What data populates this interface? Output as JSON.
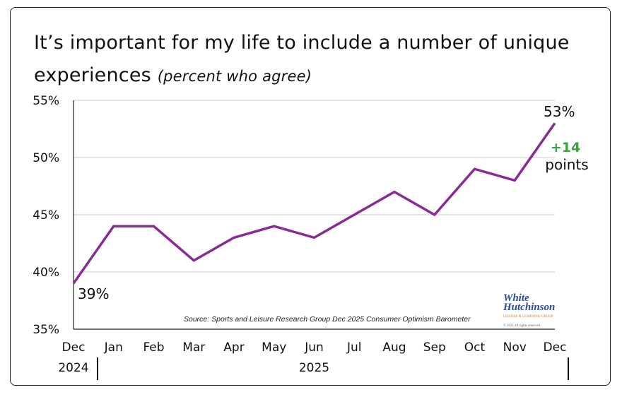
{
  "chart_data": {
    "type": "line",
    "title": "It’s important for my life to include a number of unique experiences",
    "subtitle": "(percent who agree)",
    "categories": [
      "Dec",
      "Jan",
      "Feb",
      "Mar",
      "Apr",
      "May",
      "Jun",
      "Jul",
      "Aug",
      "Sep",
      "Oct",
      "Nov",
      "Dec"
    ],
    "year_labels": [
      "2024",
      "2025"
    ],
    "series": [
      {
        "name": "Agree",
        "values": [
          39,
          44,
          44,
          41,
          43,
          44,
          43,
          45,
          47,
          45,
          49,
          48,
          53
        ],
        "color": "#8a2a96"
      }
    ],
    "ylim": [
      35,
      55
    ],
    "yticks": [
      "35%",
      "40%",
      "45%",
      "50%",
      "55%"
    ],
    "ytick_values": [
      35,
      40,
      45,
      50,
      55
    ],
    "grid": true,
    "annotations": {
      "start": "39%",
      "end": "53%",
      "change": "+14",
      "change_unit": "points",
      "change_color": "#3aa53a"
    },
    "source": "Source: Sports and Leisure Research Group Dec 2025 Consumer Optimism Barometer",
    "logo": {
      "line1": "White",
      "line2": "Hutchinson",
      "tag": "LEISURE & LEARNING GROUP",
      "copyright": "© 2025 all rights reserved"
    }
  }
}
